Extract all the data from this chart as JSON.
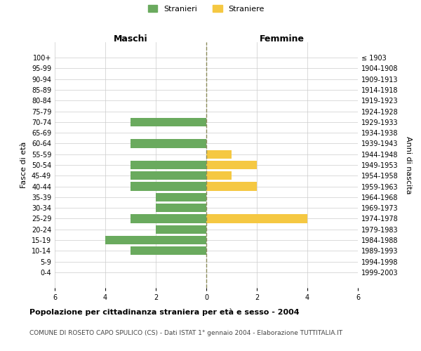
{
  "age_groups": [
    "0-4",
    "5-9",
    "10-14",
    "15-19",
    "20-24",
    "25-29",
    "30-34",
    "35-39",
    "40-44",
    "45-49",
    "50-54",
    "55-59",
    "60-64",
    "65-69",
    "70-74",
    "75-79",
    "80-84",
    "85-89",
    "90-94",
    "95-99",
    "100+"
  ],
  "birth_years": [
    "1999-2003",
    "1994-1998",
    "1989-1993",
    "1984-1988",
    "1979-1983",
    "1974-1978",
    "1969-1973",
    "1964-1968",
    "1959-1963",
    "1954-1958",
    "1949-1953",
    "1944-1948",
    "1939-1943",
    "1934-1938",
    "1929-1933",
    "1924-1928",
    "1919-1923",
    "1914-1918",
    "1909-1913",
    "1904-1908",
    "≤ 1903"
  ],
  "maschi": [
    0,
    0,
    3,
    4,
    2,
    3,
    2,
    2,
    3,
    3,
    3,
    0,
    3,
    0,
    3,
    0,
    0,
    0,
    0,
    0,
    0
  ],
  "femmine": [
    0,
    0,
    0,
    0,
    0,
    4,
    0,
    0,
    2,
    1,
    2,
    1,
    0,
    0,
    0,
    0,
    0,
    0,
    0,
    0,
    0
  ],
  "male_color": "#6aaa5e",
  "female_color": "#f5c842",
  "center_line_color": "#8b8b5a",
  "grid_color": "#cccccc",
  "title": "Popolazione per cittadinanza straniera per età e sesso - 2004",
  "subtitle": "COMUNE DI ROSETO CAPO SPULICO (CS) - Dati ISTAT 1° gennaio 2004 - Elaborazione TUTTITALIA.IT",
  "xlabel_left": "Maschi",
  "xlabel_right": "Femmine",
  "ylabel_left": "Fasce di età",
  "ylabel_right": "Anni di nascita",
  "legend_male": "Stranieri",
  "legend_female": "Straniere",
  "xlim": 6,
  "bar_height": 0.8,
  "bg_color": "#ffffff",
  "plot_bg": "#ffffff"
}
